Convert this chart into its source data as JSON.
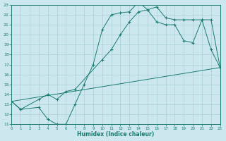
{
  "xlabel": "Humidex (Indice chaleur)",
  "bg_color": "#cce8ee",
  "line_color": "#1a7a6e",
  "grid_color": "#b0d4d8",
  "xlim": [
    0,
    23
  ],
  "ylim": [
    11,
    23
  ],
  "xticks": [
    0,
    1,
    2,
    3,
    4,
    5,
    6,
    7,
    8,
    9,
    10,
    11,
    12,
    13,
    14,
    15,
    16,
    17,
    18,
    19,
    20,
    21,
    22,
    23
  ],
  "yticks": [
    11,
    12,
    13,
    14,
    15,
    16,
    17,
    18,
    19,
    20,
    21,
    22,
    23
  ],
  "line1_x": [
    0,
    1,
    3,
    4,
    5,
    6,
    7,
    8,
    9,
    10,
    11,
    12,
    13,
    14,
    15,
    16,
    17,
    18,
    19,
    20,
    21,
    22,
    23
  ],
  "line1_y": [
    13.3,
    12.5,
    12.7,
    11.5,
    11.0,
    11.0,
    13.0,
    15.0,
    17.0,
    20.5,
    22.0,
    22.2,
    22.3,
    23.3,
    22.5,
    21.3,
    21.0,
    21.0,
    19.4,
    19.2,
    21.5,
    18.5,
    16.7
  ],
  "line2_x": [
    0,
    1,
    3,
    4,
    5,
    6,
    7,
    10,
    11,
    12,
    13,
    14,
    15,
    16,
    17,
    18,
    19,
    20,
    21,
    22,
    23
  ],
  "line2_y": [
    13.3,
    12.5,
    13.5,
    14.0,
    13.5,
    14.3,
    14.5,
    17.5,
    18.5,
    20.0,
    21.3,
    22.3,
    22.5,
    22.8,
    21.7,
    21.5,
    21.5,
    21.5,
    21.5,
    21.5,
    16.7
  ],
  "line3_x": [
    0,
    23
  ],
  "line3_y": [
    13.3,
    16.7
  ]
}
